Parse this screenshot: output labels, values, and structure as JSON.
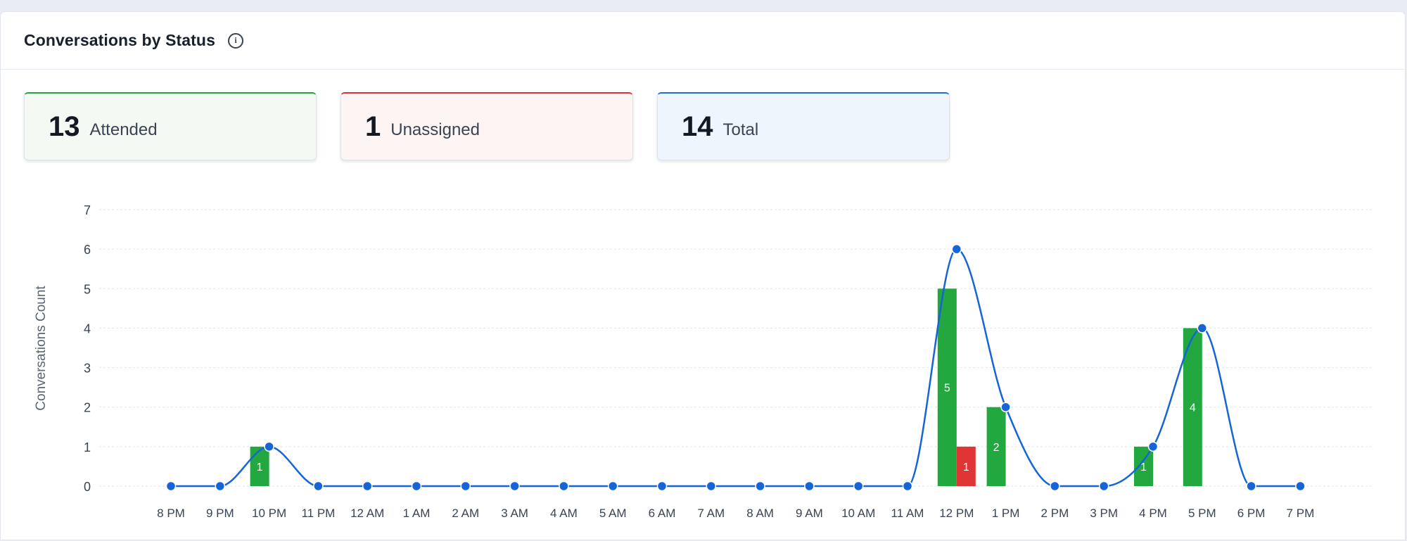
{
  "header": {
    "title": "Conversations by Status"
  },
  "stats": [
    {
      "value": "13",
      "label": "Attended",
      "accent": "#22a23b",
      "bg": "#f3f9f3"
    },
    {
      "value": "1",
      "label": "Unassigned",
      "accent": "#d8343a",
      "bg": "#fdf5f3"
    },
    {
      "value": "14",
      "label": "Total",
      "accent": "#1f6fd1",
      "bg": "#eef5fd"
    }
  ],
  "colors": {
    "attended": "#22a83f",
    "unassigned": "#e03535",
    "total_line": "#1565d8",
    "grid": "#dfe3ea",
    "tick_text": "#3a4350"
  },
  "chart_data": {
    "type": "bar",
    "ylabel": "Conversations Count",
    "xlabel": "",
    "ylim": [
      0,
      7
    ],
    "yticks": [
      0,
      1,
      2,
      3,
      4,
      5,
      6,
      7
    ],
    "grid": true,
    "categories": [
      "8 PM",
      "9 PM",
      "10 PM",
      "11 PM",
      "12 AM",
      "1 AM",
      "2 AM",
      "3 AM",
      "4 AM",
      "5 AM",
      "6 AM",
      "7 AM",
      "8 AM",
      "9 AM",
      "10 AM",
      "11 AM",
      "12 PM",
      "1 PM",
      "2 PM",
      "3 PM",
      "4 PM",
      "5 PM",
      "6 PM",
      "7 PM"
    ],
    "series": [
      {
        "type": "bar",
        "color": "#22a83f",
        "values": [
          0,
          0,
          1,
          0,
          0,
          0,
          0,
          0,
          0,
          0,
          0,
          0,
          0,
          0,
          0,
          0,
          5,
          2,
          0,
          0,
          1,
          4,
          0,
          0
        ]
      },
      {
        "type": "bar",
        "color": "#e03535",
        "values": [
          0,
          0,
          0,
          0,
          0,
          0,
          0,
          0,
          0,
          0,
          0,
          0,
          0,
          0,
          0,
          0,
          1,
          0,
          0,
          0,
          0,
          0,
          0,
          0
        ]
      },
      {
        "type": "line",
        "color": "#1565d8",
        "values": [
          0,
          0,
          1,
          0,
          0,
          0,
          0,
          0,
          0,
          0,
          0,
          0,
          0,
          0,
          0,
          0,
          6,
          2,
          0,
          0,
          1,
          4,
          0,
          0
        ]
      }
    ]
  }
}
